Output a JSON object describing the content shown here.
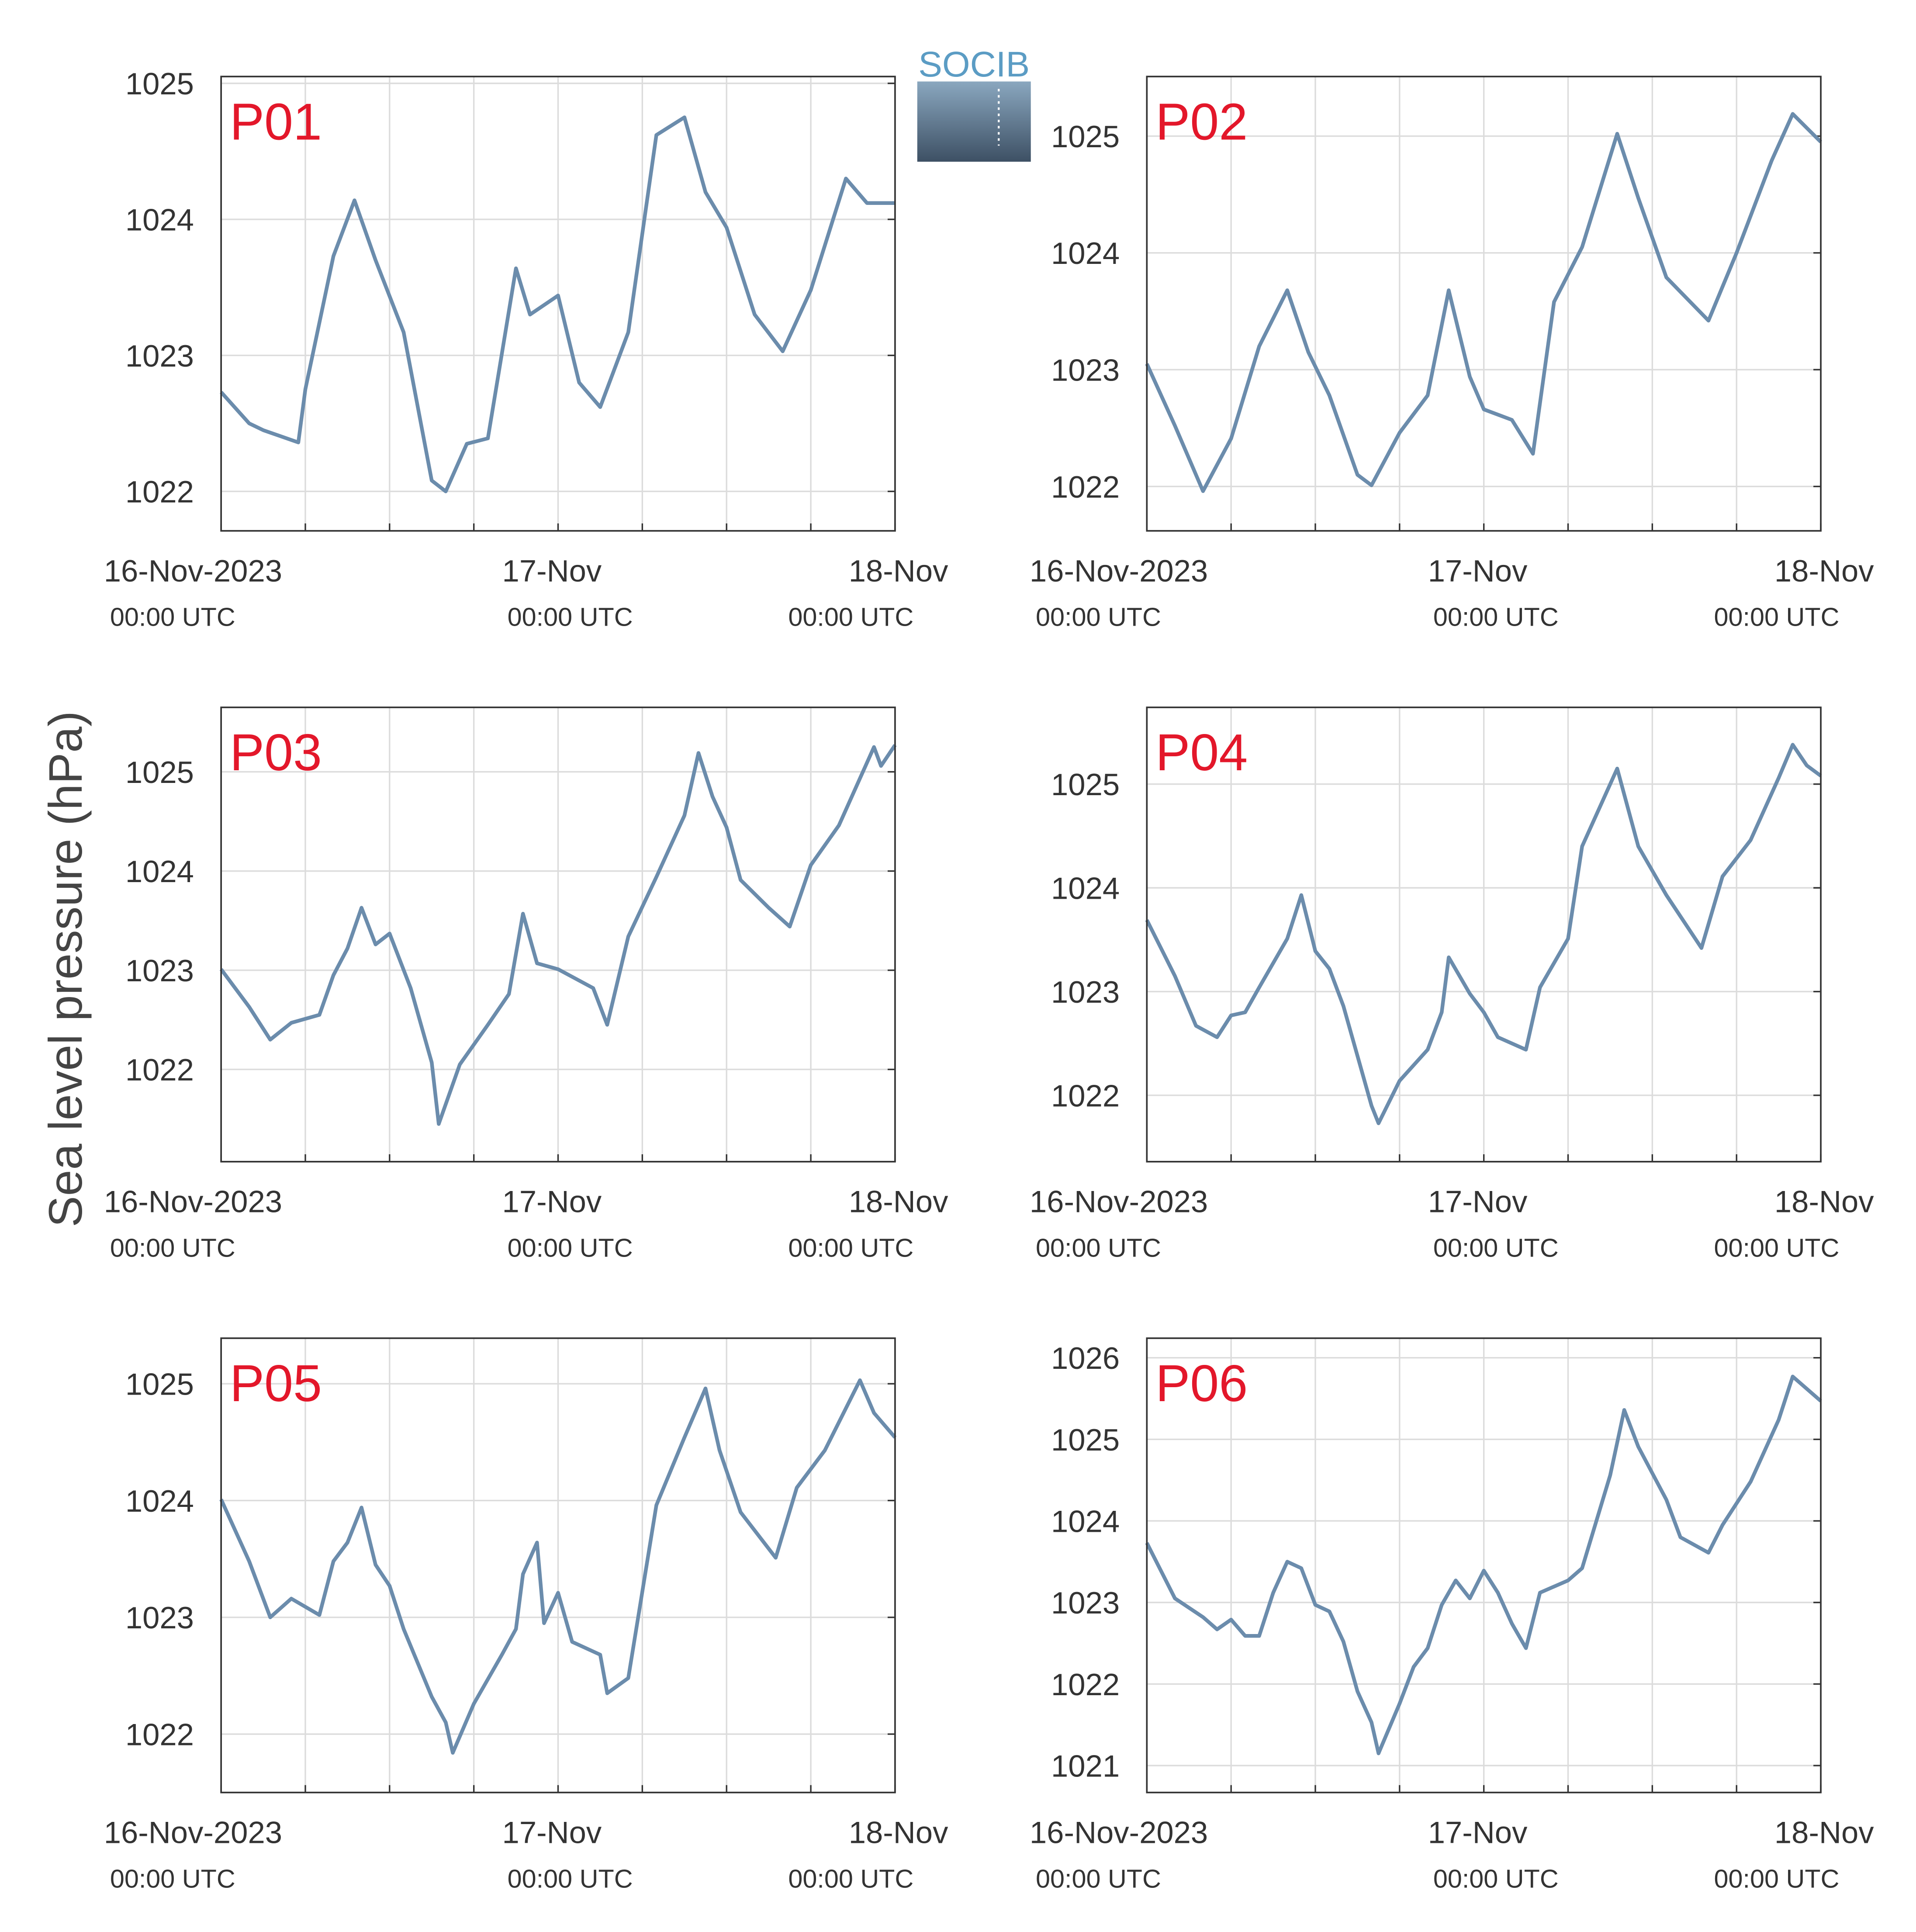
{
  "ylabel": "Sea level pressure (hPa)",
  "logo": "SOCIB",
  "chart_data": [
    {
      "type": "line",
      "title": "P01",
      "xlim": [
        0,
        48
      ],
      "ylim": [
        1021.71,
        1025.05
      ],
      "yticks": [
        1022,
        1023,
        1024,
        1025
      ],
      "xticks": [
        {
          "value": 0,
          "label": "16-Nov-2023"
        },
        {
          "value": 6,
          "label": null
        },
        {
          "value": 12,
          "label": null
        },
        {
          "value": 18,
          "label": null
        },
        {
          "value": 24,
          "label": "17-Nov"
        },
        {
          "value": 30,
          "label": null
        },
        {
          "value": 36,
          "label": null
        },
        {
          "value": 42,
          "label": null
        },
        {
          "value": 48,
          "label": "18-Nov"
        }
      ],
      "xtick_sublabel": "00:00 UTC",
      "grid": true,
      "x": [
        0,
        2,
        3,
        5.5,
        6,
        8,
        9.5,
        11,
        13,
        15,
        16,
        17.5,
        19,
        21,
        22,
        24,
        25.5,
        27,
        29,
        31,
        33,
        34.5,
        36,
        38,
        40,
        42,
        44.5,
        46,
        48
      ],
      "series": [
        {
          "name": "P01",
          "color": "#6b8cac",
          "values": [
            1022.73,
            1022.5,
            1022.45,
            1022.36,
            1022.75,
            1023.73,
            1024.14,
            1023.7,
            1023.17,
            1022.08,
            1022.0,
            1022.35,
            1022.39,
            1023.64,
            1023.3,
            1023.44,
            1022.8,
            1022.62,
            1023.17,
            1024.62,
            1024.75,
            1024.2,
            1023.94,
            1023.3,
            1023.03,
            1023.48,
            1024.3,
            1024.12,
            1024.12
          ]
        }
      ]
    },
    {
      "type": "line",
      "title": "P02",
      "xlim": [
        0,
        48
      ],
      "ylim": [
        1021.62,
        1025.51
      ],
      "yticks": [
        1022,
        1023,
        1024,
        1025
      ],
      "xticks": [
        {
          "value": 0,
          "label": "16-Nov-2023"
        },
        {
          "value": 6,
          "label": null
        },
        {
          "value": 12,
          "label": null
        },
        {
          "value": 18,
          "label": null
        },
        {
          "value": 24,
          "label": "17-Nov"
        },
        {
          "value": 30,
          "label": null
        },
        {
          "value": 36,
          "label": null
        },
        {
          "value": 42,
          "label": null
        },
        {
          "value": 48,
          "label": "18-Nov"
        }
      ],
      "xtick_sublabel": "00:00 UTC",
      "grid": true,
      "x": [
        0,
        2,
        4,
        6,
        8,
        10,
        11.5,
        13,
        15,
        16,
        18,
        20,
        21.5,
        23,
        24,
        26,
        27.5,
        29,
        31,
        33.5,
        35,
        37,
        40,
        42,
        44.5,
        46,
        48
      ],
      "series": [
        {
          "name": "P02",
          "color": "#6b8cac",
          "values": [
            1023.05,
            1022.52,
            1021.96,
            1022.41,
            1023.2,
            1023.68,
            1023.15,
            1022.78,
            1022.1,
            1022.01,
            1022.46,
            1022.78,
            1023.68,
            1022.94,
            1022.66,
            1022.57,
            1022.28,
            1023.58,
            1024.05,
            1025.02,
            1024.47,
            1023.79,
            1023.42,
            1024.0,
            1024.79,
            1025.19,
            1024.95
          ]
        }
      ]
    },
    {
      "type": "line",
      "title": "P03",
      "xlim": [
        0,
        48
      ],
      "ylim": [
        1021.07,
        1025.65
      ],
      "yticks": [
        1022,
        1023,
        1024,
        1025
      ],
      "xticks": [
        {
          "value": 0,
          "label": "16-Nov-2023"
        },
        {
          "value": 6,
          "label": null
        },
        {
          "value": 12,
          "label": null
        },
        {
          "value": 18,
          "label": null
        },
        {
          "value": 24,
          "label": "17-Nov"
        },
        {
          "value": 30,
          "label": null
        },
        {
          "value": 36,
          "label": null
        },
        {
          "value": 42,
          "label": null
        },
        {
          "value": 48,
          "label": "18-Nov"
        }
      ],
      "xtick_sublabel": "00:00 UTC",
      "grid": true,
      "x": [
        0,
        2,
        3.5,
        5,
        7,
        8,
        9,
        10,
        11,
        12,
        13.5,
        15,
        15.5,
        17,
        19,
        20.5,
        21.5,
        22.5,
        24,
        26.5,
        27.5,
        29,
        31,
        33,
        34,
        35,
        36,
        37,
        39,
        40.5,
        42,
        44,
        46.5,
        47,
        48
      ],
      "series": [
        {
          "name": "P03",
          "color": "#6b8cac",
          "values": [
            1023.01,
            1022.63,
            1022.3,
            1022.47,
            1022.55,
            1022.95,
            1023.22,
            1023.63,
            1023.26,
            1023.37,
            1022.82,
            1022.07,
            1021.45,
            1022.05,
            1022.45,
            1022.76,
            1023.57,
            1023.07,
            1023.01,
            1022.82,
            1022.45,
            1023.34,
            1023.94,
            1024.56,
            1025.19,
            1024.75,
            1024.44,
            1023.91,
            1023.63,
            1023.44,
            1024.06,
            1024.46,
            1025.25,
            1025.06,
            1025.27
          ]
        }
      ]
    },
    {
      "type": "line",
      "title": "P04",
      "xlim": [
        0,
        48
      ],
      "ylim": [
        1021.36,
        1025.74
      ],
      "yticks": [
        1022,
        1023,
        1024,
        1025
      ],
      "xticks": [
        {
          "value": 0,
          "label": "16-Nov-2023"
        },
        {
          "value": 6,
          "label": null
        },
        {
          "value": 12,
          "label": null
        },
        {
          "value": 18,
          "label": null
        },
        {
          "value": 24,
          "label": "17-Nov"
        },
        {
          "value": 30,
          "label": null
        },
        {
          "value": 36,
          "label": null
        },
        {
          "value": 42,
          "label": null
        },
        {
          "value": 48,
          "label": "18-Nov"
        }
      ],
      "xtick_sublabel": "00:00 UTC",
      "grid": true,
      "x": [
        0,
        2,
        3.5,
        5,
        6,
        7,
        8,
        10,
        11,
        12,
        13,
        14,
        15,
        16,
        16.5,
        18,
        20,
        21,
        21.5,
        23,
        24,
        25,
        27,
        28,
        30,
        31,
        33.5,
        35,
        37,
        39.5,
        41,
        43,
        45,
        46,
        47,
        48
      ],
      "series": [
        {
          "name": "P04",
          "color": "#6b8cac",
          "values": [
            1023.69,
            1023.15,
            1022.67,
            1022.56,
            1022.77,
            1022.8,
            1023.04,
            1023.51,
            1023.93,
            1023.39,
            1023.22,
            1022.86,
            1022.38,
            1021.9,
            1021.73,
            1022.14,
            1022.44,
            1022.8,
            1023.33,
            1022.98,
            1022.8,
            1022.56,
            1022.44,
            1023.04,
            1023.51,
            1024.4,
            1025.15,
            1024.4,
            1023.93,
            1023.42,
            1024.11,
            1024.46,
            1025.06,
            1025.38,
            1025.18,
            1025.08
          ]
        }
      ]
    },
    {
      "type": "line",
      "title": "P05",
      "xlim": [
        0,
        48
      ],
      "ylim": [
        1021.5,
        1025.39
      ],
      "yticks": [
        1022,
        1023,
        1024,
        1025
      ],
      "xticks": [
        {
          "value": 0,
          "label": "16-Nov-2023"
        },
        {
          "value": 6,
          "label": null
        },
        {
          "value": 12,
          "label": null
        },
        {
          "value": 18,
          "label": null
        },
        {
          "value": 24,
          "label": "17-Nov"
        },
        {
          "value": 30,
          "label": null
        },
        {
          "value": 36,
          "label": null
        },
        {
          "value": 42,
          "label": null
        },
        {
          "value": 48,
          "label": "18-Nov"
        }
      ],
      "xtick_sublabel": "00:00 UTC",
      "grid": true,
      "x": [
        0,
        2,
        3.5,
        5,
        7,
        8,
        9,
        10,
        11,
        12,
        13,
        15,
        16,
        16.5,
        18,
        20,
        21,
        21.5,
        22.5,
        23,
        24,
        25,
        27,
        27.5,
        29,
        31,
        33,
        34.5,
        35.5,
        37,
        39.5,
        41,
        43,
        45.5,
        46.5,
        48
      ],
      "series": [
        {
          "name": "P05",
          "color": "#6b8cac",
          "values": [
            1024.01,
            1023.48,
            1023.0,
            1023.16,
            1023.02,
            1023.48,
            1023.64,
            1023.94,
            1023.45,
            1023.27,
            1022.9,
            1022.32,
            1022.1,
            1021.84,
            1022.26,
            1022.68,
            1022.9,
            1023.37,
            1023.64,
            1022.95,
            1023.21,
            1022.79,
            1022.68,
            1022.35,
            1022.48,
            1023.96,
            1024.54,
            1024.96,
            1024.43,
            1023.9,
            1023.51,
            1024.11,
            1024.43,
            1025.03,
            1024.75,
            1024.54
          ]
        }
      ]
    },
    {
      "type": "line",
      "title": "P06",
      "xlim": [
        0,
        48
      ],
      "ylim": [
        1020.67,
        1026.24
      ],
      "yticks": [
        1021,
        1022,
        1023,
        1024,
        1025,
        1026
      ],
      "xticks": [
        {
          "value": 0,
          "label": "16-Nov-2023"
        },
        {
          "value": 6,
          "label": null
        },
        {
          "value": 12,
          "label": null
        },
        {
          "value": 18,
          "label": null
        },
        {
          "value": 24,
          "label": "17-Nov"
        },
        {
          "value": 30,
          "label": null
        },
        {
          "value": 36,
          "label": null
        },
        {
          "value": 42,
          "label": null
        },
        {
          "value": 48,
          "label": "18-Nov"
        }
      ],
      "xtick_sublabel": "00:00 UTC",
      "grid": true,
      "x": [
        0,
        2,
        4,
        5,
        6,
        7,
        8,
        9,
        10,
        11,
        12,
        13,
        14,
        15,
        16,
        16.5,
        18,
        19,
        20,
        21,
        22,
        23,
        24,
        25,
        26,
        27,
        28,
        30,
        31,
        33,
        34,
        35,
        37,
        38,
        40,
        41,
        43,
        45,
        46,
        47,
        48
      ],
      "series": [
        {
          "name": "P06",
          "color": "#6b8cac",
          "values": [
            1023.73,
            1023.05,
            1022.82,
            1022.67,
            1022.79,
            1022.59,
            1022.59,
            1023.12,
            1023.5,
            1023.42,
            1022.97,
            1022.89,
            1022.52,
            1021.91,
            1021.53,
            1021.15,
            1021.76,
            1022.21,
            1022.44,
            1022.97,
            1023.27,
            1023.05,
            1023.39,
            1023.12,
            1022.74,
            1022.44,
            1023.12,
            1023.27,
            1023.42,
            1024.56,
            1025.36,
            1024.91,
            1024.26,
            1023.8,
            1023.61,
            1023.95,
            1024.48,
            1025.24,
            1025.77,
            1025.62,
            1025.47
          ]
        }
      ]
    }
  ]
}
